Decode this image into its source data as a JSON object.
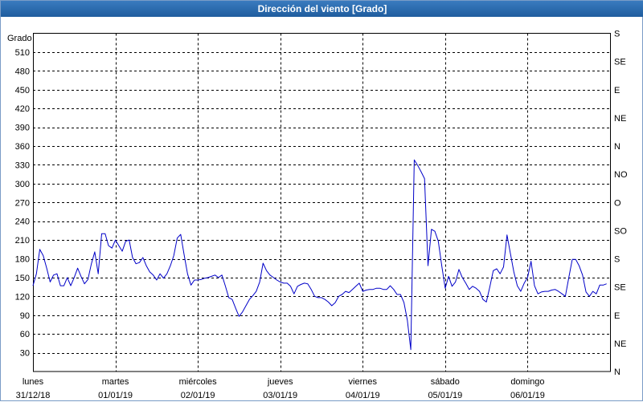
{
  "colors": {
    "title_bar": "#1f5d9e",
    "title_text": "#ffffff",
    "series_line": "#0000c8",
    "grid": "#000000"
  },
  "chart_data": {
    "type": "line",
    "title": "Dirección del viento [Grado]",
    "ylabel": "Grado",
    "ylim": [
      0,
      540
    ],
    "xlim": [
      "2018-12-31 00:00",
      "2019-01-07 00:00"
    ],
    "grid": true,
    "yticks": [
      30,
      60,
      90,
      120,
      150,
      180,
      210,
      240,
      270,
      300,
      330,
      360,
      390,
      420,
      450,
      480,
      510
    ],
    "y2ticks": [
      {
        "value": 540,
        "label": "S"
      },
      {
        "value": 495,
        "label": "SE"
      },
      {
        "value": 450,
        "label": "E"
      },
      {
        "value": 405,
        "label": "NE"
      },
      {
        "value": 360,
        "label": "N"
      },
      {
        "value": 315,
        "label": "NO"
      },
      {
        "value": 270,
        "label": "O"
      },
      {
        "value": 225,
        "label": "SO"
      },
      {
        "value": 180,
        "label": "S"
      },
      {
        "value": 135,
        "label": "SE"
      },
      {
        "value": 90,
        "label": "E"
      },
      {
        "value": 45,
        "label": "NE"
      },
      {
        "value": 0,
        "label": "N"
      }
    ],
    "xticks": [
      {
        "at": "2018-12-31 00:00",
        "day": "lunes",
        "date": "31/12/18"
      },
      {
        "at": "2019-01-01 00:00",
        "day": "martes",
        "date": "01/01/19"
      },
      {
        "at": "2019-01-02 00:00",
        "day": "miércoles",
        "date": "02/01/19"
      },
      {
        "at": "2019-01-03 00:00",
        "day": "jueves",
        "date": "03/01/19"
      },
      {
        "at": "2019-01-04 00:00",
        "day": "viernes",
        "date": "04/01/19"
      },
      {
        "at": "2019-01-05 00:00",
        "day": "sábado",
        "date": "05/01/19"
      },
      {
        "at": "2019-01-06 00:00",
        "day": "domingo",
        "date": "06/01/19"
      }
    ],
    "series": [
      {
        "x": [
          "2018-12-31 00:00",
          "2018-12-31 01:00",
          "2018-12-31 02:00",
          "2018-12-31 03:00",
          "2018-12-31 04:00",
          "2018-12-31 05:00",
          "2018-12-31 06:00",
          "2018-12-31 07:00",
          "2018-12-31 08:00",
          "2018-12-31 09:00",
          "2018-12-31 10:00",
          "2018-12-31 11:00",
          "2018-12-31 12:00",
          "2018-12-31 13:00",
          "2018-12-31 14:00",
          "2018-12-31 15:00",
          "2018-12-31 16:00",
          "2018-12-31 17:00",
          "2018-12-31 18:00",
          "2018-12-31 19:00",
          "2018-12-31 20:00",
          "2018-12-31 21:00",
          "2018-12-31 22:00",
          "2018-12-31 23:00",
          "2019-01-01 00:00",
          "2019-01-01 01:00",
          "2019-01-01 02:00",
          "2019-01-01 03:00",
          "2019-01-01 04:00",
          "2019-01-01 05:00",
          "2019-01-01 06:00",
          "2019-01-01 07:00",
          "2019-01-01 08:00",
          "2019-01-01 09:00",
          "2019-01-01 10:00",
          "2019-01-01 11:00",
          "2019-01-01 12:00",
          "2019-01-01 13:00",
          "2019-01-01 14:00",
          "2019-01-01 15:00",
          "2019-01-01 16:00",
          "2019-01-01 17:00",
          "2019-01-01 18:00",
          "2019-01-01 19:00",
          "2019-01-01 20:00",
          "2019-01-01 21:00",
          "2019-01-01 22:00",
          "2019-01-01 23:00",
          "2019-01-02 00:00",
          "2019-01-02 01:00",
          "2019-01-02 02:00",
          "2019-01-02 03:00",
          "2019-01-02 04:00",
          "2019-01-02 05:00",
          "2019-01-02 06:00",
          "2019-01-02 07:00",
          "2019-01-02 08:00",
          "2019-01-02 09:00",
          "2019-01-02 10:00",
          "2019-01-02 11:00",
          "2019-01-02 12:00",
          "2019-01-02 13:00",
          "2019-01-02 14:00",
          "2019-01-02 15:00",
          "2019-01-02 16:00",
          "2019-01-02 17:00",
          "2019-01-02 18:00",
          "2019-01-02 19:00",
          "2019-01-02 20:00",
          "2019-01-02 21:00",
          "2019-01-02 22:00",
          "2019-01-02 23:00",
          "2019-01-03 00:00",
          "2019-01-03 01:00",
          "2019-01-03 02:00",
          "2019-01-03 03:00",
          "2019-01-03 04:00",
          "2019-01-03 05:00",
          "2019-01-03 06:00",
          "2019-01-03 07:00",
          "2019-01-03 08:00",
          "2019-01-03 09:00",
          "2019-01-03 10:00",
          "2019-01-03 11:00",
          "2019-01-03 12:00",
          "2019-01-03 13:00",
          "2019-01-03 14:00",
          "2019-01-03 15:00",
          "2019-01-03 16:00",
          "2019-01-03 17:00",
          "2019-01-03 18:00",
          "2019-01-03 19:00",
          "2019-01-03 20:00",
          "2019-01-03 21:00",
          "2019-01-03 22:00",
          "2019-01-03 23:00",
          "2019-01-04 00:00",
          "2019-01-04 01:00",
          "2019-01-04 02:00",
          "2019-01-04 03:00",
          "2019-01-04 04:00",
          "2019-01-04 05:00",
          "2019-01-04 06:00",
          "2019-01-04 07:00",
          "2019-01-04 08:00",
          "2019-01-04 09:00",
          "2019-01-04 10:00",
          "2019-01-04 11:00",
          "2019-01-04 12:00",
          "2019-01-04 13:00",
          "2019-01-04 14:00",
          "2019-01-04 15:00",
          "2019-01-04 16:00",
          "2019-01-04 17:00",
          "2019-01-04 18:00",
          "2019-01-04 19:00",
          "2019-01-04 20:00",
          "2019-01-04 21:00",
          "2019-01-04 22:00",
          "2019-01-04 23:00",
          "2019-01-05 00:00",
          "2019-01-05 01:00",
          "2019-01-05 02:00",
          "2019-01-05 03:00",
          "2019-01-05 04:00",
          "2019-01-05 05:00",
          "2019-01-05 06:00",
          "2019-01-05 07:00",
          "2019-01-05 08:00",
          "2019-01-05 09:00",
          "2019-01-05 10:00",
          "2019-01-05 11:00",
          "2019-01-05 12:00",
          "2019-01-05 13:00",
          "2019-01-05 14:00",
          "2019-01-05 15:00",
          "2019-01-05 16:00",
          "2019-01-05 17:00",
          "2019-01-05 18:00",
          "2019-01-05 19:00",
          "2019-01-05 20:00",
          "2019-01-05 21:00",
          "2019-01-05 22:00",
          "2019-01-05 23:00",
          "2019-01-06 00:00",
          "2019-01-06 01:00",
          "2019-01-06 02:00",
          "2019-01-06 03:00",
          "2019-01-06 04:00",
          "2019-01-06 05:00",
          "2019-01-06 06:00",
          "2019-01-06 07:00",
          "2019-01-06 08:00",
          "2019-01-06 09:00",
          "2019-01-06 10:00",
          "2019-01-06 11:00",
          "2019-01-06 12:00",
          "2019-01-06 13:00",
          "2019-01-06 14:00",
          "2019-01-06 15:00",
          "2019-01-06 16:00",
          "2019-01-06 17:00",
          "2019-01-06 18:00",
          "2019-01-06 19:00",
          "2019-01-06 20:00",
          "2019-01-06 21:00",
          "2019-01-06 22:00",
          "2019-01-06 23:00"
        ],
        "values": [
          137,
          156,
          195,
          185,
          165,
          143,
          154,
          156,
          137,
          137,
          150,
          137,
          150,
          165,
          152,
          140,
          147,
          172,
          191,
          156,
          220,
          220,
          201,
          197,
          210,
          201,
          192,
          208,
          210,
          182,
          172,
          174,
          182,
          169,
          159,
          154,
          146,
          156,
          149,
          156,
          169,
          185,
          213,
          219,
          187,
          156,
          138,
          146,
          146,
          147,
          149,
          150,
          152,
          154,
          150,
          154,
          137,
          118,
          115,
          101,
          88,
          95,
          105,
          115,
          121,
          128,
          143,
          173,
          161,
          154,
          150,
          146,
          143,
          141,
          141,
          136,
          124,
          136,
          139,
          141,
          140,
          131,
          120,
          118,
          118,
          115,
          111,
          105,
          110,
          120,
          123,
          128,
          126,
          131,
          136,
          141,
          128,
          130,
          131,
          131,
          133,
          133,
          131,
          131,
          137,
          131,
          123,
          123,
          110,
          82,
          35,
          338,
          329,
          319,
          308,
          169,
          227,
          224,
          208,
          169,
          133,
          152,
          136,
          143,
          163,
          150,
          141,
          131,
          136,
          133,
          128,
          115,
          111,
          135,
          161,
          164,
          156,
          167,
          218,
          188,
          159,
          137,
          128,
          141,
          150,
          176,
          137,
          124,
          127,
          128,
          128,
          130,
          131,
          128,
          124,
          120,
          150,
          179,
          179,
          169,
          154,
          127,
          120,
          128,
          124,
          138,
          138,
          140
        ]
      }
    ]
  }
}
